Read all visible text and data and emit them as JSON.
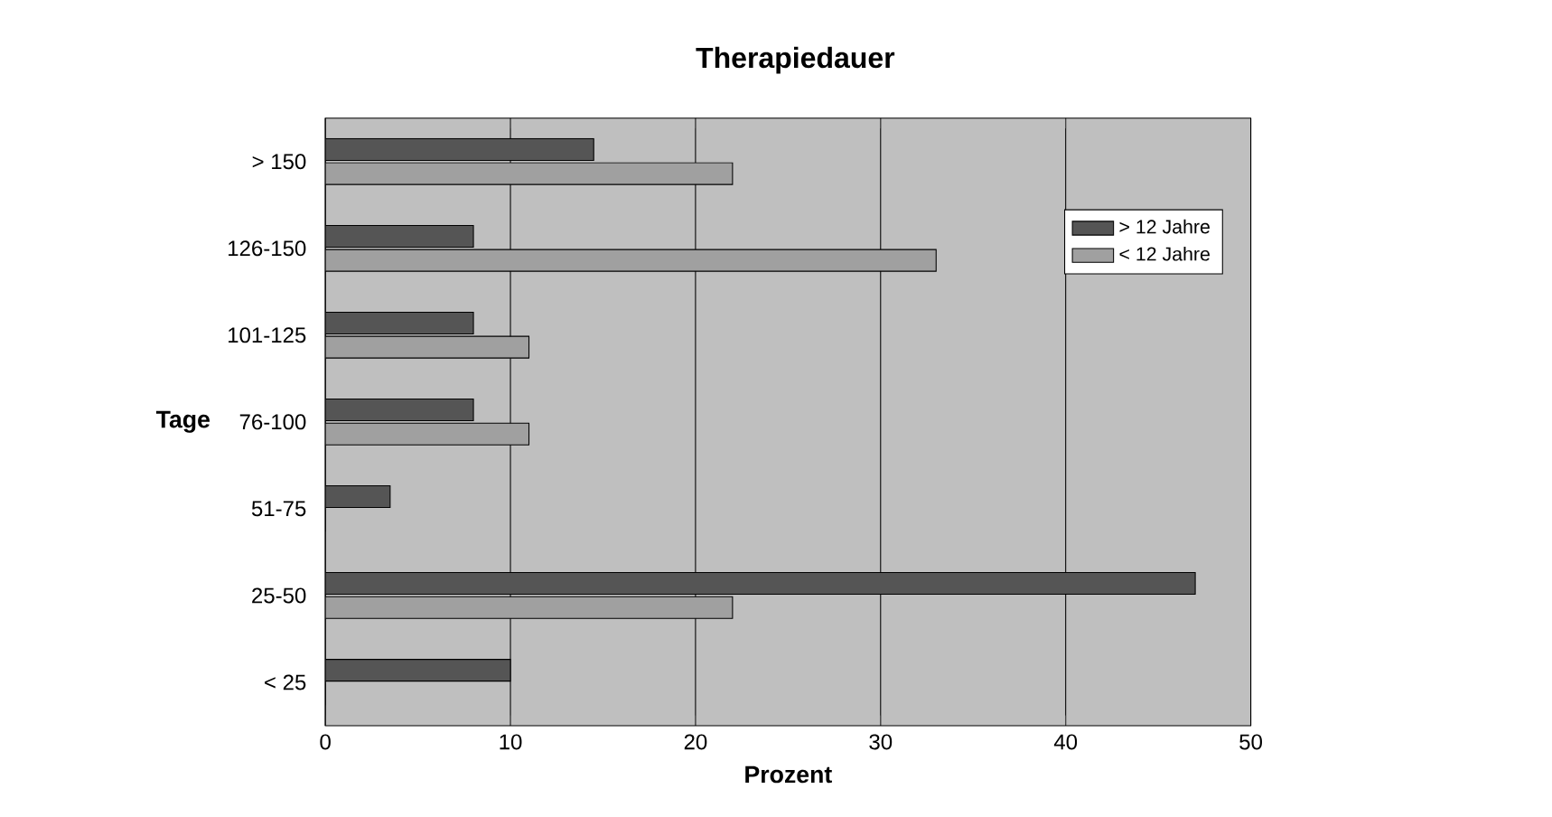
{
  "chart_data": {
    "type": "bar",
    "orientation": "horizontal",
    "title": "Therapiedauer",
    "xlabel": "Prozent",
    "ylabel": "Tage",
    "categories": [
      "> 150",
      "126-150",
      "101-125",
      "76-100",
      "51-75",
      "25-50",
      "< 25"
    ],
    "series": [
      {
        "name": "> 12 Jahre",
        "color": "#555555",
        "values": [
          14.5,
          8,
          8,
          8,
          3.5,
          47,
          10
        ]
      },
      {
        "name": "< 12 Jahre",
        "color": "#a0a0a0",
        "values": [
          22,
          33,
          11,
          11,
          0,
          22,
          0
        ]
      }
    ],
    "xlim": [
      0,
      50
    ],
    "xticks": [
      0,
      10,
      20,
      30,
      40,
      50
    ],
    "grid": "x",
    "legend": "top right"
  }
}
